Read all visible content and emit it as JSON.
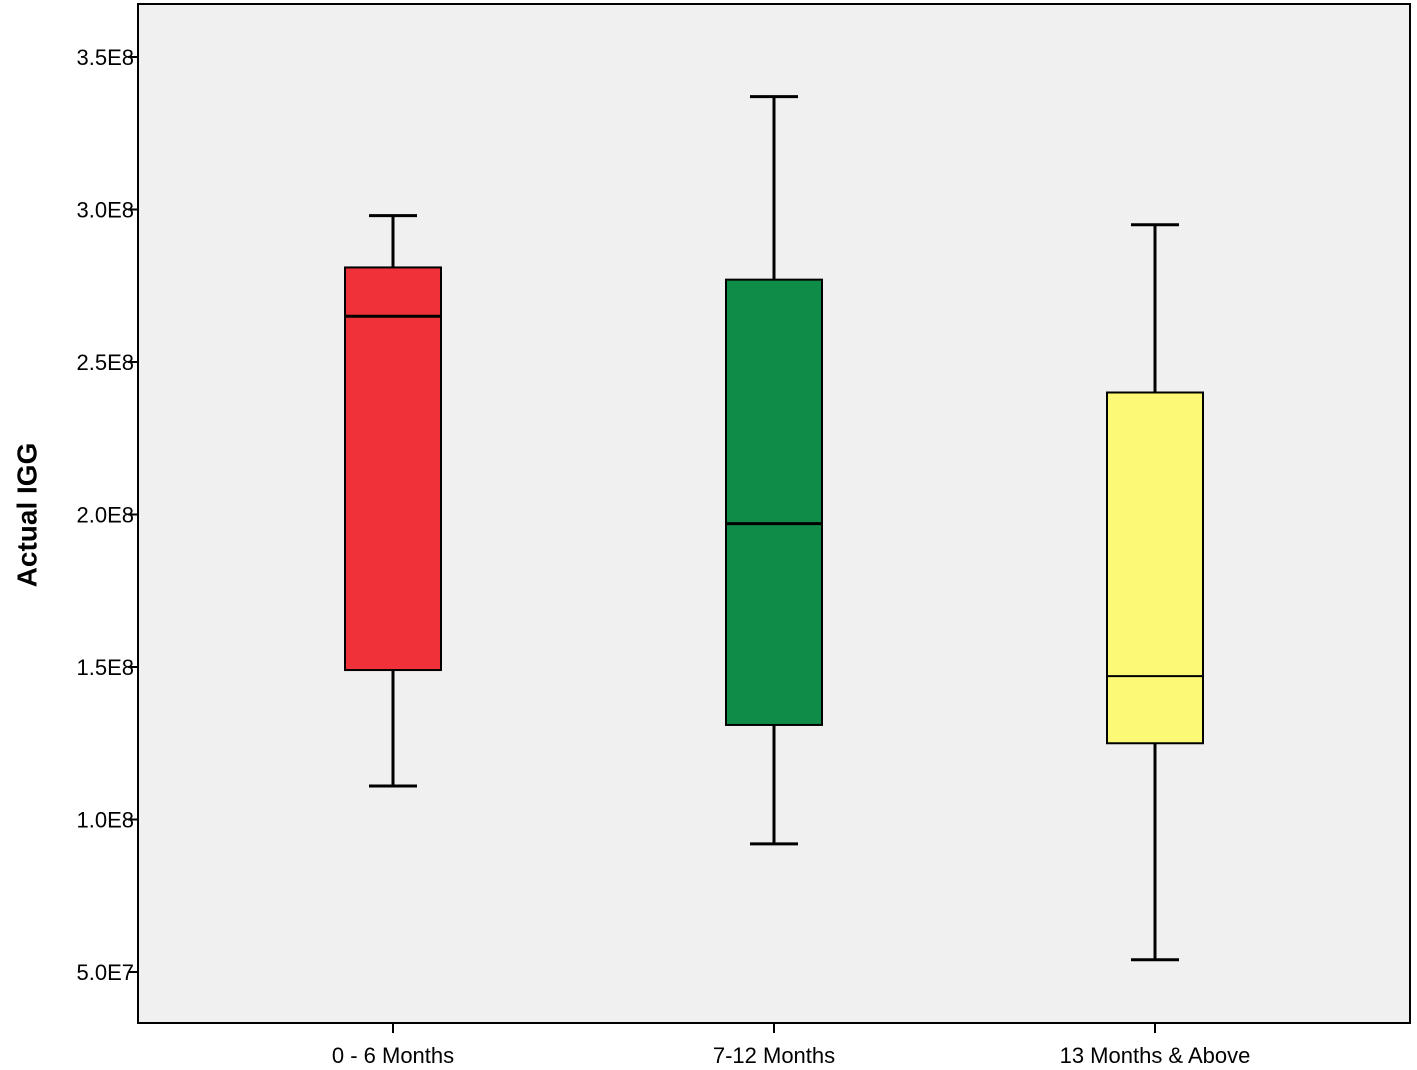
{
  "chart_data": {
    "type": "boxplot",
    "title": "",
    "xlabel": "",
    "ylabel": "Actual IGG",
    "ylim": [
      30000000,
      365000000
    ],
    "yticks": [
      50000000,
      100000000,
      150000000,
      200000000,
      250000000,
      300000000,
      350000000
    ],
    "ytick_labels": [
      "5.0E7",
      "1.0E8",
      "1.5E8",
      "2.0E8",
      "2.5E8",
      "3.0E8",
      "3.5E8"
    ],
    "grid": false,
    "legend": "none",
    "categories": [
      "0 - 6 Months",
      "7-12 Months",
      "13 Months & Above"
    ],
    "boxes": [
      {
        "category": "0 - 6 Months",
        "whisker_low": 111000000,
        "q1": 149000000,
        "median": 265000000,
        "q3": 281000000,
        "whisker_high": 298000000,
        "color": "#ef323a"
      },
      {
        "category": "7-12 Months",
        "whisker_low": 92000000,
        "q1": 131000000,
        "median": 197000000,
        "q3": 277000000,
        "whisker_high": 337000000,
        "color": "#0f8c47"
      },
      {
        "category": "13 Months & Above",
        "whisker_low": 54000000,
        "q1": 125000000,
        "median": 147000000,
        "q3": 240000000,
        "whisker_high": 295000000,
        "color": "#fbf976"
      }
    ],
    "plot_background": "#f0f0f0"
  }
}
